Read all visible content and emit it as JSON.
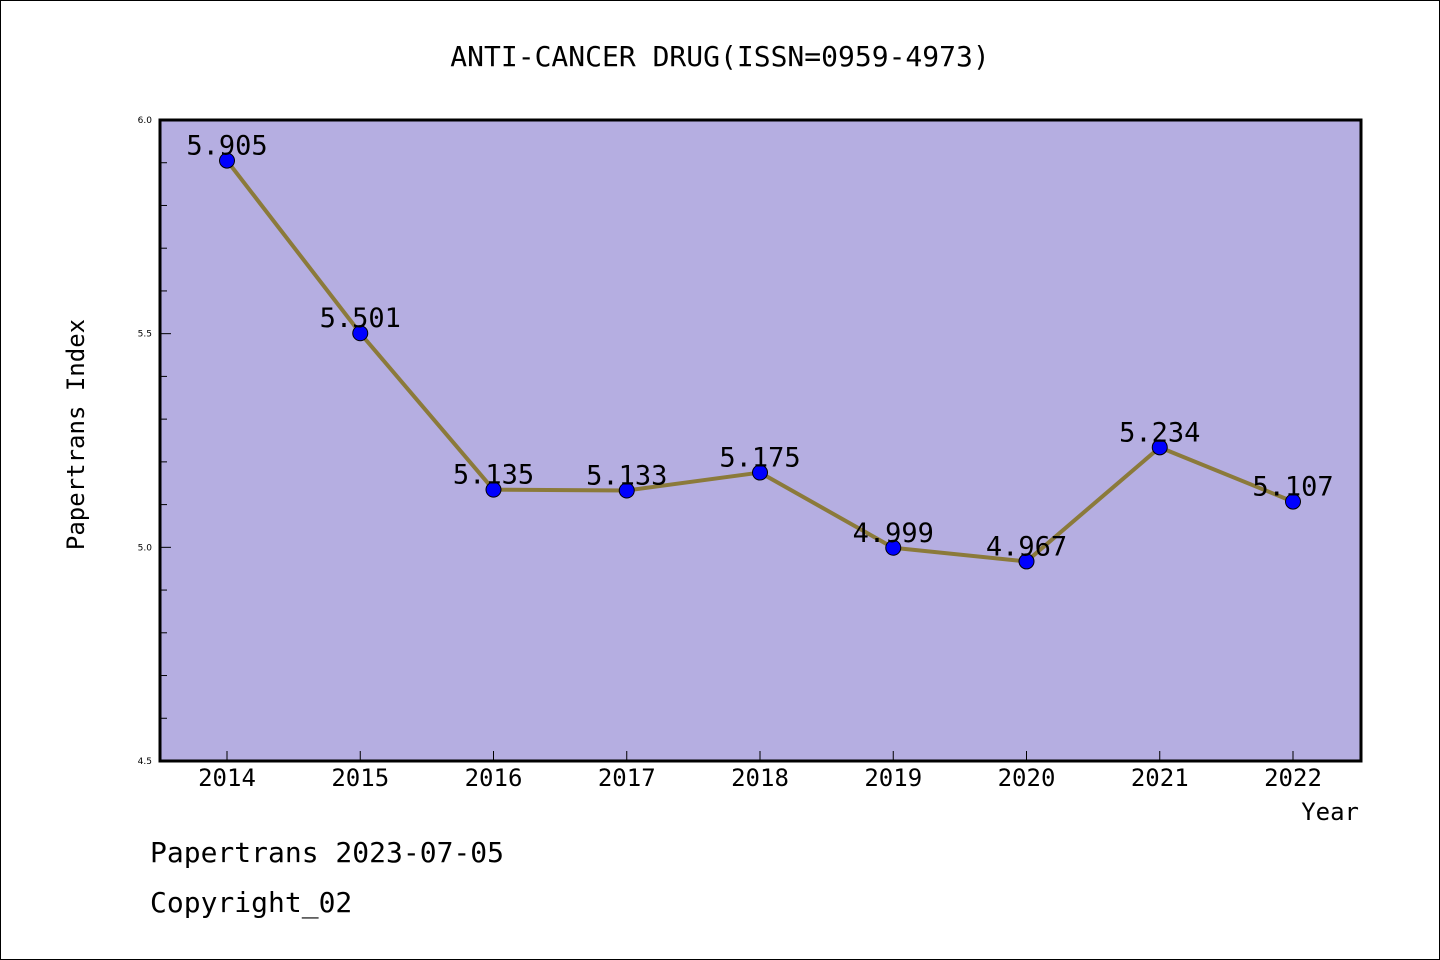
{
  "chart_data": {
    "type": "line",
    "title": "ANTI-CANCER DRUG(ISSN=0959-4973)",
    "xlabel": "Year",
    "ylabel": "Papertrans Index",
    "categories": [
      "2014",
      "2015",
      "2016",
      "2017",
      "2018",
      "2019",
      "2020",
      "2021",
      "2022"
    ],
    "series": [
      {
        "values": [
          5.905,
          5.501,
          5.135,
          5.133,
          5.175,
          4.999,
          4.967,
          5.234,
          5.107
        ]
      }
    ],
    "data_labels": [
      "5.905",
      "5.501",
      "5.135",
      "5.133",
      "5.175",
      "4.999",
      "4.967",
      "5.234",
      "5.107"
    ],
    "ylim": [
      4.5,
      6.0
    ],
    "yticks": [
      "4.5",
      "5.0",
      "5.5",
      "6.0"
    ],
    "grid": false,
    "colors": {
      "plot_background": "#b5aee1",
      "line": "#8b7a3a",
      "marker": "#0000ff",
      "axis": "#000000"
    }
  },
  "footer": {
    "date_text": "Papertrans 2023-07-05",
    "copyright_text": "Copyright_02"
  }
}
